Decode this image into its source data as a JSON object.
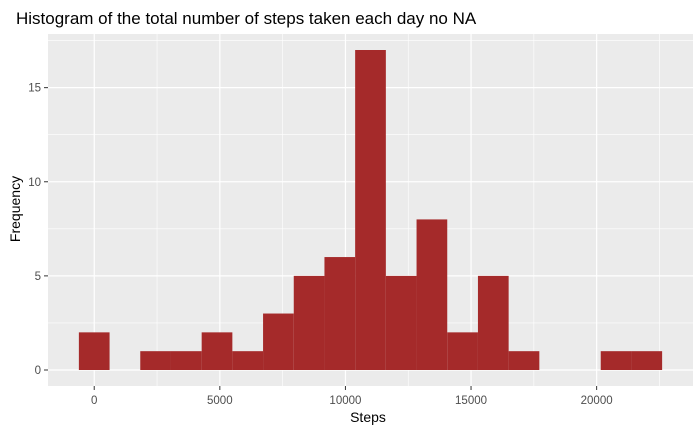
{
  "chart_data": {
    "type": "bar",
    "title": "Histogram of the total number of steps taken each day no NA",
    "xlabel": "Steps",
    "ylabel": "Frequency",
    "bin_width": 1222,
    "bins": [
      {
        "start": -611,
        "end": 611,
        "count": 2
      },
      {
        "start": 611,
        "end": 1833,
        "count": 0
      },
      {
        "start": 1833,
        "end": 3055,
        "count": 1
      },
      {
        "start": 3055,
        "end": 4277,
        "count": 1
      },
      {
        "start": 4277,
        "end": 5499,
        "count": 2
      },
      {
        "start": 5499,
        "end": 6721,
        "count": 1
      },
      {
        "start": 6721,
        "end": 7943,
        "count": 3
      },
      {
        "start": 7943,
        "end": 9165,
        "count": 5
      },
      {
        "start": 9165,
        "end": 10387,
        "count": 6
      },
      {
        "start": 10387,
        "end": 11609,
        "count": 17
      },
      {
        "start": 11609,
        "end": 12831,
        "count": 5
      },
      {
        "start": 12831,
        "end": 14053,
        "count": 8
      },
      {
        "start": 14053,
        "end": 15275,
        "count": 2
      },
      {
        "start": 15275,
        "end": 16497,
        "count": 5
      },
      {
        "start": 16497,
        "end": 17719,
        "count": 1
      },
      {
        "start": 17719,
        "end": 18941,
        "count": 0
      },
      {
        "start": 18941,
        "end": 20163,
        "count": 0
      },
      {
        "start": 20163,
        "end": 21385,
        "count": 1
      },
      {
        "start": 21385,
        "end": 22607,
        "count": 1
      }
    ],
    "xlim": [
      -1840,
      23836
    ],
    "ylim": [
      -0.85,
      17.85
    ],
    "x_ticks": [
      0,
      5000,
      10000,
      15000,
      20000
    ],
    "x_tick_labels": [
      "0",
      "5000",
      "10000",
      "15000",
      "20000"
    ],
    "y_ticks": [
      0,
      5,
      10,
      15
    ],
    "y_tick_labels": [
      "0",
      "5",
      "10",
      "15"
    ],
    "bar_color": "#a52a2a",
    "panel_background": "#ebebeb",
    "grid_color": "#ffffff",
    "tick_color": "#333333",
    "grid": true,
    "legend": "none"
  }
}
